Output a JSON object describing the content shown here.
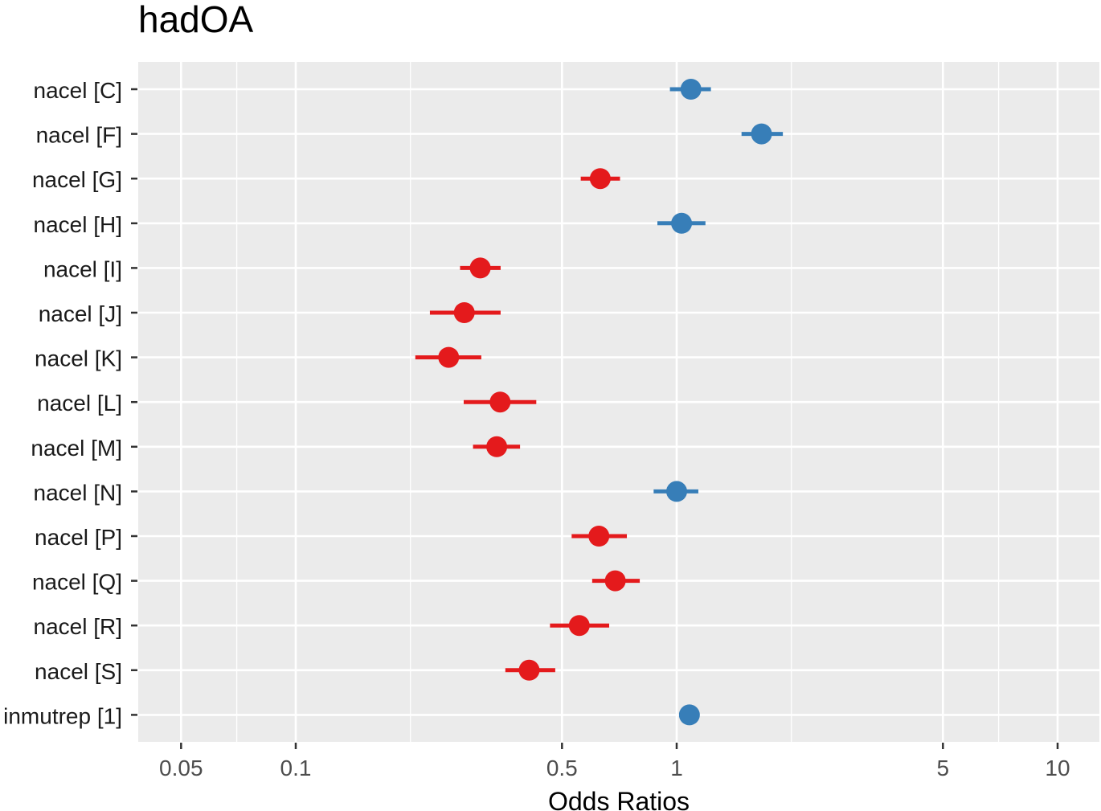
{
  "chart_data": {
    "type": "scatter",
    "title": "hadOA",
    "xlabel": "Odds Ratios",
    "ylabel": "",
    "x_scale": "log",
    "xlim": [
      0.04,
      11.5
    ],
    "x_ticks": [
      {
        "value": 0.05,
        "label": "0.05"
      },
      {
        "value": 0.1,
        "label": "0.1"
      },
      {
        "value": 0.5,
        "label": "0.5"
      },
      {
        "value": 1,
        "label": "1"
      },
      {
        "value": 5,
        "label": "5"
      },
      {
        "value": 10,
        "label": "10"
      }
    ],
    "x_minor_grid": [
      0.07,
      0.2,
      2,
      7
    ],
    "grid": true,
    "legend": "none",
    "colors": {
      "positive": "#377eb8",
      "negative": "#e41a1c",
      "panel": "#ebebeb",
      "grid": "#ffffff"
    },
    "terms": [
      {
        "label": "nacel [C]",
        "estimate": 1.09,
        "conf_low": 0.96,
        "conf_high": 1.23,
        "direction": "positive"
      },
      {
        "label": "nacel [F]",
        "estimate": 1.67,
        "conf_low": 1.48,
        "conf_high": 1.9,
        "direction": "positive"
      },
      {
        "label": "nacel [G]",
        "estimate": 0.63,
        "conf_low": 0.56,
        "conf_high": 0.71,
        "direction": "negative"
      },
      {
        "label": "nacel [H]",
        "estimate": 1.03,
        "conf_low": 0.89,
        "conf_high": 1.19,
        "direction": "positive"
      },
      {
        "label": "nacel [I]",
        "estimate": 0.305,
        "conf_low": 0.27,
        "conf_high": 0.345,
        "direction": "negative"
      },
      {
        "label": "nacel [J]",
        "estimate": 0.277,
        "conf_low": 0.225,
        "conf_high": 0.345,
        "direction": "negative"
      },
      {
        "label": "nacel [K]",
        "estimate": 0.252,
        "conf_low": 0.206,
        "conf_high": 0.307,
        "direction": "negative"
      },
      {
        "label": "nacel [L]",
        "estimate": 0.344,
        "conf_low": 0.276,
        "conf_high": 0.428,
        "direction": "negative"
      },
      {
        "label": "nacel [M]",
        "estimate": 0.337,
        "conf_low": 0.292,
        "conf_high": 0.388,
        "direction": "negative"
      },
      {
        "label": "nacel [N]",
        "estimate": 1.0,
        "conf_low": 0.87,
        "conf_high": 1.14,
        "direction": "positive"
      },
      {
        "label": "nacel [P]",
        "estimate": 0.625,
        "conf_low": 0.53,
        "conf_high": 0.74,
        "direction": "negative"
      },
      {
        "label": "nacel [Q]",
        "estimate": 0.69,
        "conf_low": 0.6,
        "conf_high": 0.8,
        "direction": "negative"
      },
      {
        "label": "nacel [R]",
        "estimate": 0.555,
        "conf_low": 0.465,
        "conf_high": 0.665,
        "direction": "negative"
      },
      {
        "label": "nacel [S]",
        "estimate": 0.41,
        "conf_low": 0.355,
        "conf_high": 0.48,
        "direction": "negative"
      },
      {
        "label": "inmutrep [1]",
        "estimate": 1.08,
        "conf_low": 1.06,
        "conf_high": 1.1,
        "direction": "positive"
      }
    ]
  }
}
